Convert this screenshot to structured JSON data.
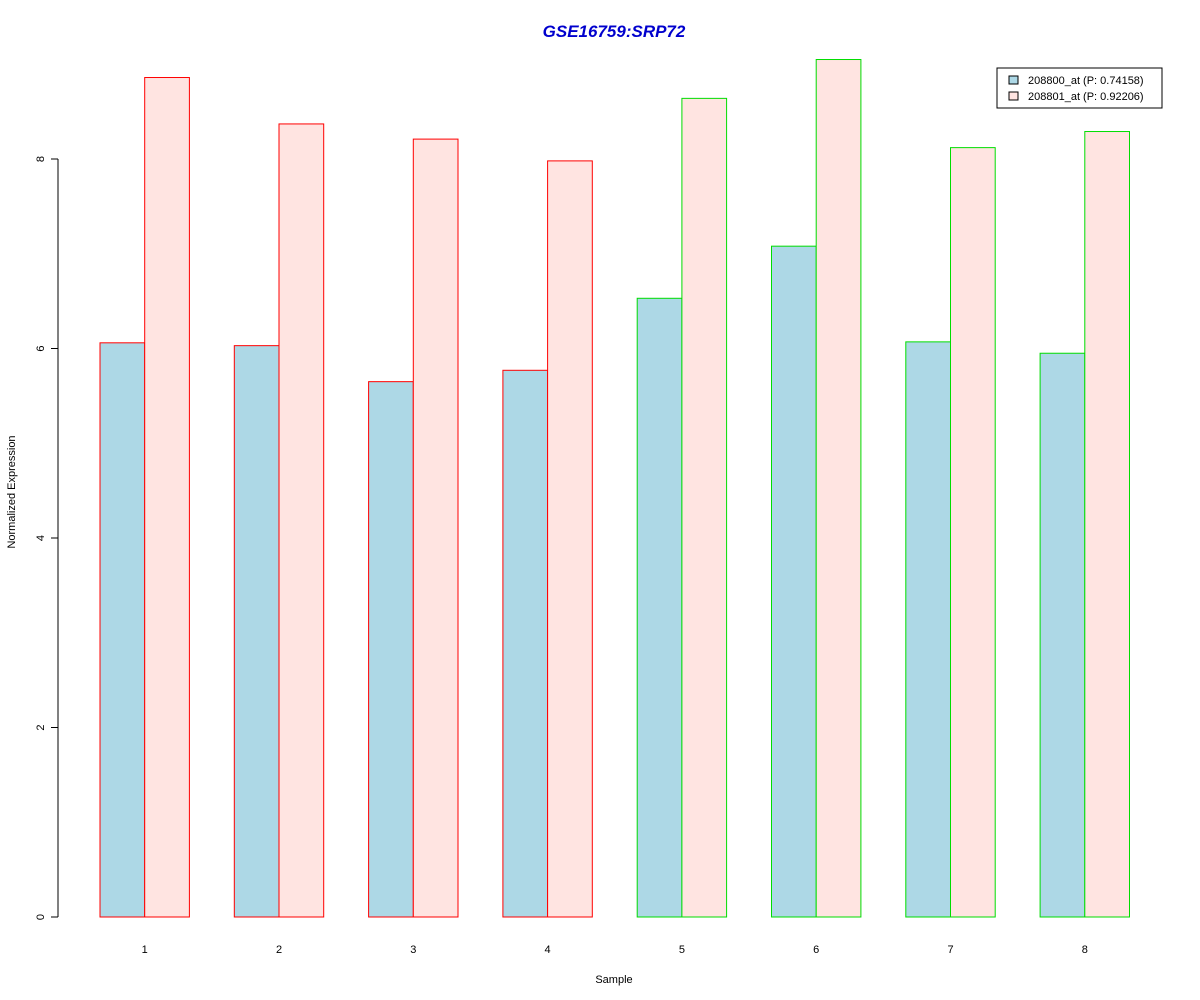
{
  "chart_data": {
    "type": "bar",
    "title": "GSE16759:SRP72",
    "xlabel": "Sample",
    "ylabel": "Normalized Expression",
    "categories": [
      "1",
      "2",
      "3",
      "4",
      "5",
      "6",
      "7",
      "8"
    ],
    "series": [
      {
        "name": "208800_at (P: 0.74158)",
        "values": [
          6.06,
          6.03,
          5.65,
          5.77,
          6.53,
          7.08,
          6.07,
          5.95
        ]
      },
      {
        "name": "208801_at (P: 0.92206)",
        "values": [
          8.86,
          8.37,
          8.21,
          7.98,
          8.64,
          9.05,
          8.12,
          8.29
        ]
      }
    ],
    "group_border_colors": [
      "#ff0000",
      "#ff0000",
      "#ff0000",
      "#ff0000",
      "#00dd00",
      "#00dd00",
      "#00dd00",
      "#00dd00"
    ],
    "series_colors": [
      "#add8e6",
      "#ffe4e1"
    ],
    "title_color": "#0000cd",
    "yticks": [
      0,
      2,
      4,
      6,
      8
    ],
    "ylim": [
      0,
      9.05
    ],
    "grid": false,
    "legend_position": "top-right"
  }
}
